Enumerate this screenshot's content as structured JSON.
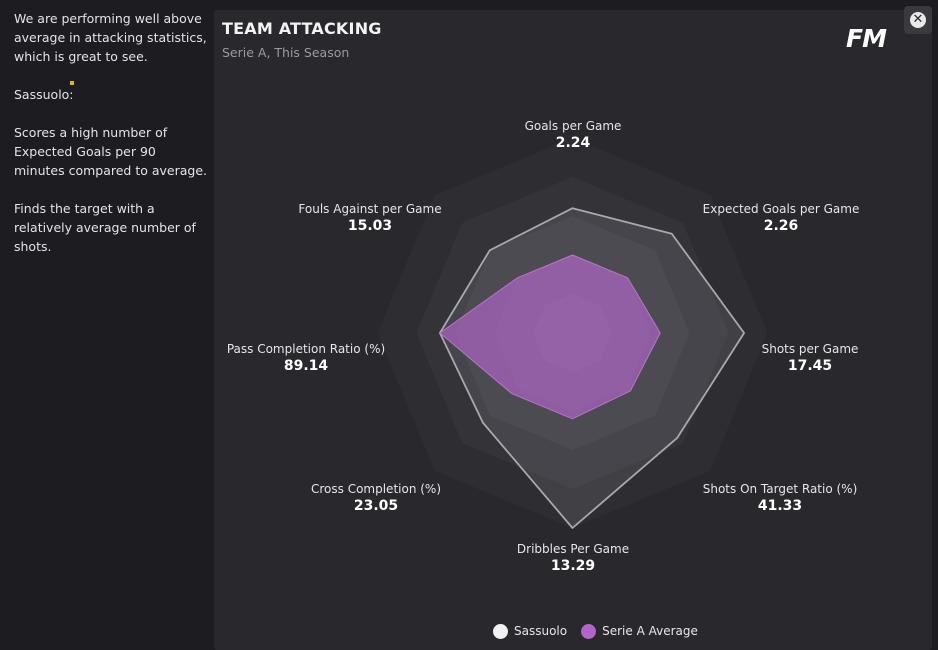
{
  "sidebar": {
    "paragraphs": [
      "We are performing well above average in attacking statistics, which is great to see.",
      "Sassuolo:",
      "Scores a high number of Expected Goals per 90 minutes compared to average.",
      "Finds the target with a relatively average number of shots."
    ]
  },
  "panel": {
    "title": "TEAM ATTACKING",
    "subtitle": "Serie A, This Season",
    "logo": "FM"
  },
  "close_button": {
    "glyph": "✕"
  },
  "axes": [
    {
      "name": "Goals per Game",
      "value": "2.24"
    },
    {
      "name": "Expected Goals per Game",
      "value": "2.26"
    },
    {
      "name": "Shots per Game",
      "value": "17.45"
    },
    {
      "name": "Shots On Target Ratio (%)",
      "value": "41.33"
    },
    {
      "name": "Dribbles Per Game",
      "value": "13.29"
    },
    {
      "name": "Cross Completion (%)",
      "value": "23.05"
    },
    {
      "name": "Pass Completion Ratio (%)",
      "value": "89.14"
    },
    {
      "name": "Fouls Against per Game",
      "value": "15.03"
    }
  ],
  "chart_data": {
    "type": "radar",
    "categories": [
      "Goals per Game",
      "Expected Goals per Game",
      "Shots per Game",
      "Shots On Target Ratio (%)",
      "Dribbles Per Game",
      "Cross Completion (%)",
      "Pass Completion Ratio (%)",
      "Fouls Against per Game"
    ],
    "rings": 5,
    "series": [
      {
        "name": "Sassuolo",
        "color": "#f2f2f4",
        "values_relative": [
          0.64,
          0.72,
          0.88,
          0.76,
          1.0,
          0.65,
          0.68,
          0.6
        ]
      },
      {
        "name": "Serie A Average",
        "color": "#b265c8",
        "values_relative": [
          0.4,
          0.4,
          0.45,
          0.42,
          0.44,
          0.44,
          0.68,
          0.4
        ]
      }
    ]
  },
  "legend": [
    {
      "label": "Sassuolo",
      "color": "#f2f2f4"
    },
    {
      "label": "Serie A Average",
      "color": "#b265c8"
    }
  ]
}
